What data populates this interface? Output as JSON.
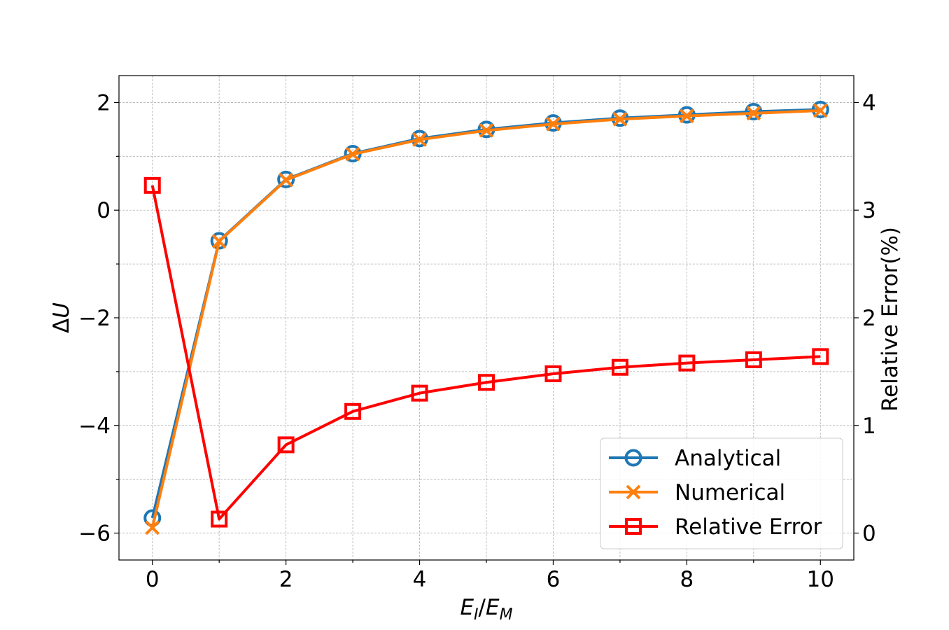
{
  "chart_data": {
    "type": "line",
    "title": "",
    "xlabel": "E_I/E_M",
    "ylabel": "ΔU",
    "y2label": "Relative Error(%)",
    "x": [
      0,
      1,
      2,
      3,
      4,
      5,
      6,
      7,
      8,
      9,
      10
    ],
    "xlim": [
      -0.5,
      10.5
    ],
    "ylim": [
      -6.5,
      2.5
    ],
    "y2lim": [
      -0.25,
      4.25
    ],
    "xticks": [
      0,
      2,
      4,
      6,
      8,
      10
    ],
    "yticks": [
      -6,
      -4,
      -2,
      0,
      2
    ],
    "y2ticks": [
      0,
      1,
      2,
      3,
      4
    ],
    "grid": true,
    "legend_position": "lower-right",
    "series": [
      {
        "name": "Analytical",
        "axis": "left",
        "color": "#1f77b4",
        "marker": "circle",
        "values": [
          -5.72,
          -0.57,
          0.57,
          1.05,
          1.33,
          1.5,
          1.62,
          1.71,
          1.77,
          1.83,
          1.87
        ]
      },
      {
        "name": "Numerical",
        "axis": "left",
        "color": "#ff7f0e",
        "marker": "x",
        "values": [
          -5.9,
          -0.58,
          0.56,
          1.04,
          1.31,
          1.48,
          1.6,
          1.69,
          1.75,
          1.8,
          1.85
        ]
      },
      {
        "name": "Relative Error",
        "axis": "right",
        "color": "#ff0000",
        "marker": "square",
        "values": [
          3.23,
          0.13,
          0.82,
          1.13,
          1.3,
          1.4,
          1.48,
          1.54,
          1.58,
          1.61,
          1.64
        ]
      }
    ]
  }
}
